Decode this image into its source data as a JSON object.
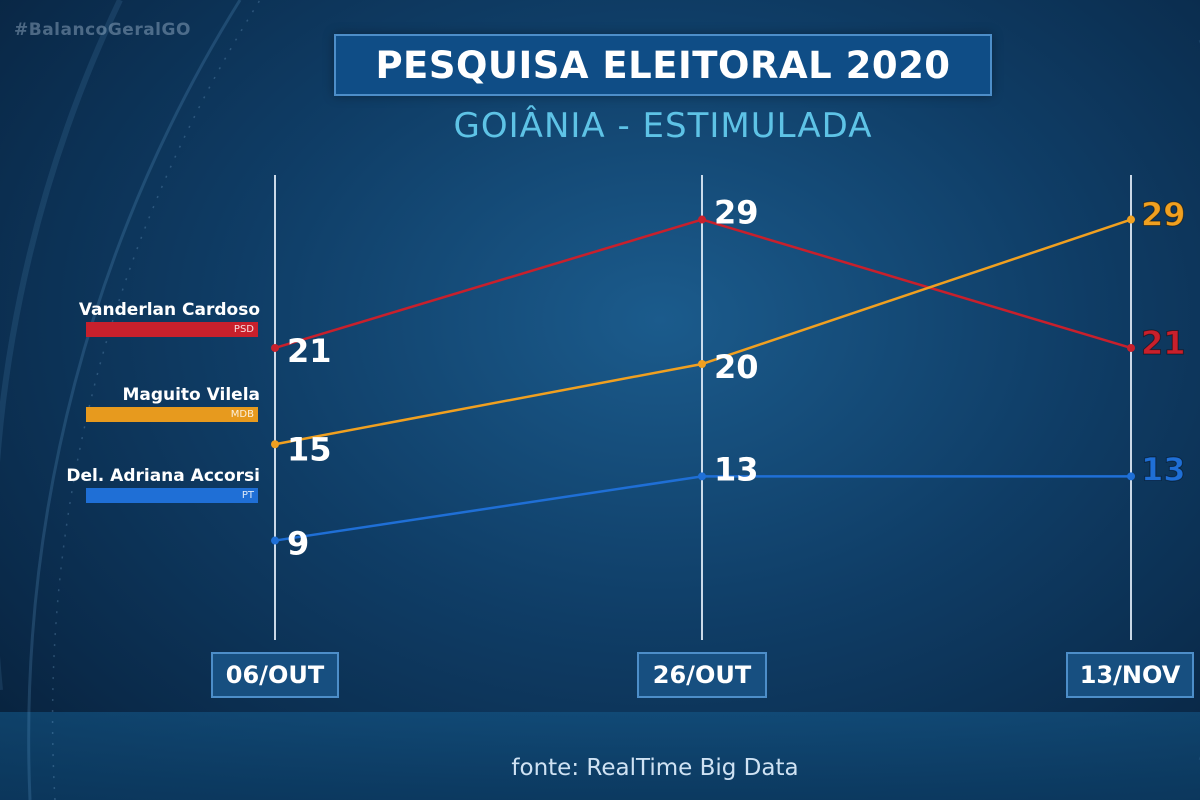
{
  "hashtag": "#BalancoGeralGO",
  "title": "PESQUISA ELEITORAL 2020",
  "subtitle": "GOIÂNIA - ESTIMULADA",
  "source": "fonte: RealTime Big Data",
  "colors": {
    "vanderlan": "#c8202c",
    "maguito": "#f0a020",
    "adriana": "#1f6fd6"
  },
  "candidates": [
    {
      "name": "Vanderlan Cardoso",
      "party": "PSD",
      "series_index": 0
    },
    {
      "name": "Maguito Vilela",
      "party": "MDB",
      "series_index": 1
    },
    {
      "name": "Del. Adriana Accorsi",
      "party": "PT",
      "series_index": 2
    }
  ],
  "chart_data": {
    "type": "line",
    "title": "PESQUISA ELEITORAL 2020",
    "subtitle": "GOIÂNIA - ESTIMULADA",
    "categories": [
      "06/OUT",
      "26/OUT",
      "13/NOV"
    ],
    "series": [
      {
        "name": "Vanderlan Cardoso",
        "color": "#c8202c",
        "values": [
          21,
          29,
          21
        ]
      },
      {
        "name": "Maguito Vilela",
        "color": "#f0a020",
        "values": [
          15,
          20,
          29
        ]
      },
      {
        "name": "Del. Adriana Accorsi",
        "color": "#1f6fd6",
        "values": [
          9,
          13,
          13
        ]
      }
    ],
    "data_labels": true,
    "grid": false,
    "legend": "left"
  }
}
